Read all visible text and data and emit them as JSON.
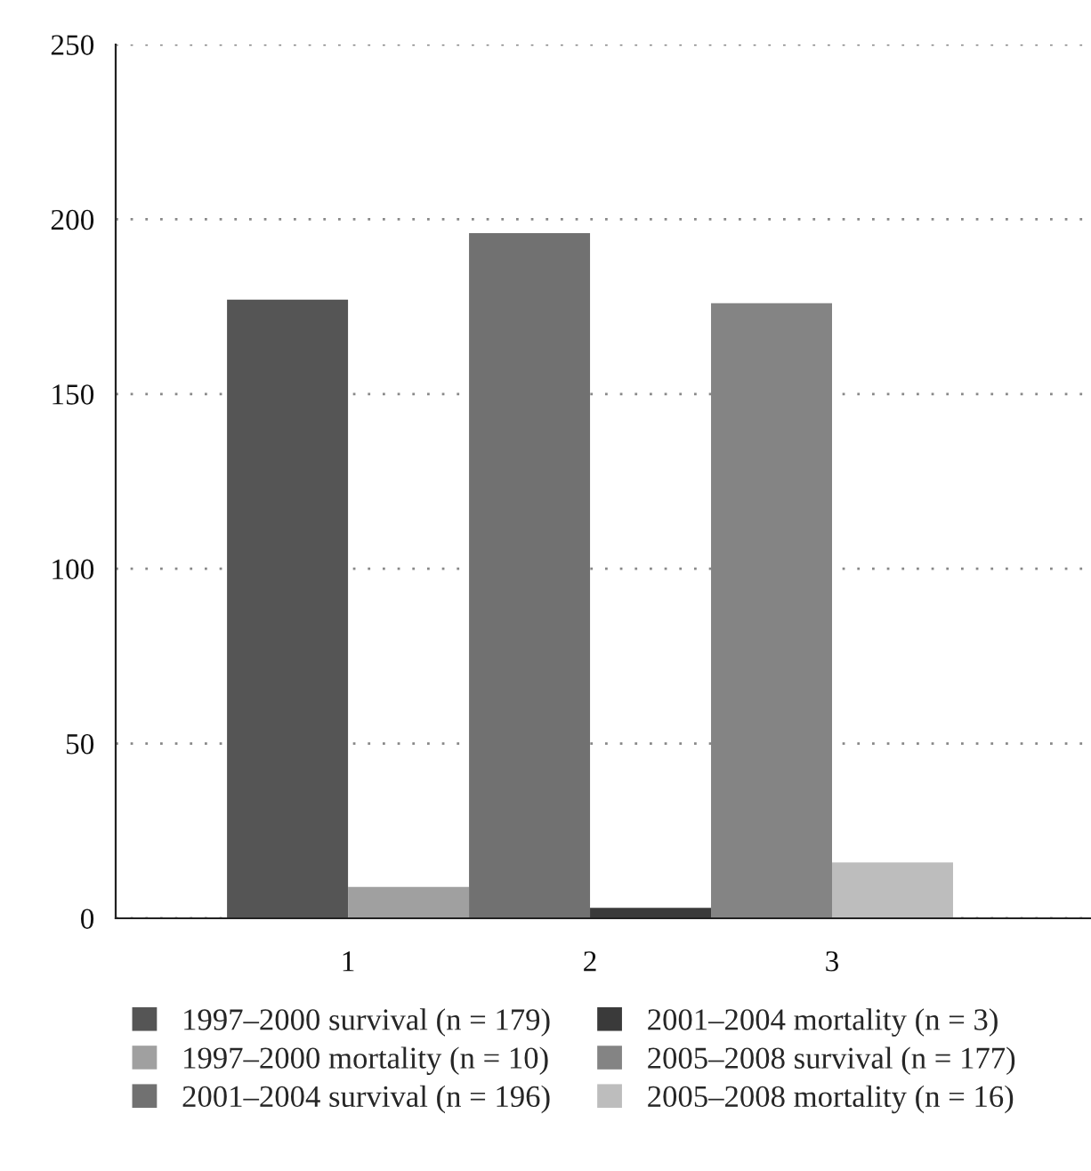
{
  "chart_data": {
    "type": "bar",
    "categories": [
      "1",
      "2",
      "3"
    ],
    "series": [
      {
        "name": "1997–2000 survival (n = 179)",
        "color": "#555555",
        "values": [
          177,
          null,
          null
        ]
      },
      {
        "name": "1997–2000 mortality (n = 10)",
        "color": "#a0a0a0",
        "values": [
          9,
          null,
          null
        ]
      },
      {
        "name": "2001–2004 survival (n = 196)",
        "color": "#717171",
        "values": [
          null,
          196,
          null
        ]
      },
      {
        "name": "2001–2004 mortality (n = 3)",
        "color": "#3a3a3a",
        "values": [
          null,
          3,
          null
        ]
      },
      {
        "name": "2005–2008 survival (n = 177)",
        "color": "#848484",
        "values": [
          null,
          null,
          176
        ]
      },
      {
        "name": "2005–2008 mortality (n = 16)",
        "color": "#bdbdbd",
        "values": [
          null,
          null,
          16
        ]
      }
    ],
    "ylim": [
      0,
      250
    ],
    "yticks": [
      0,
      50,
      100,
      150,
      200,
      250
    ],
    "grid": "y",
    "legend": "bottom"
  }
}
